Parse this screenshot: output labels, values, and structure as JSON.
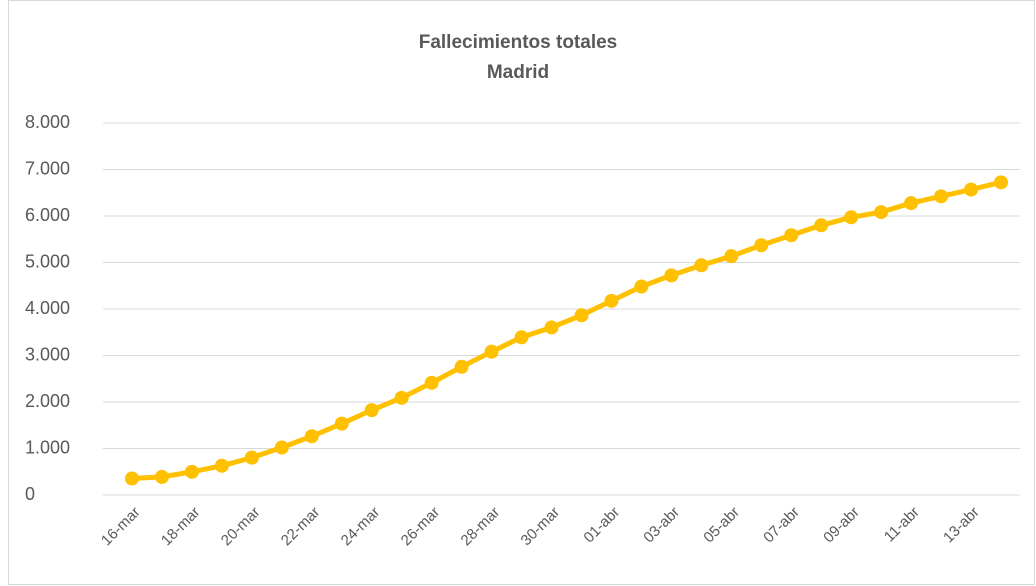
{
  "chart_data": {
    "type": "line",
    "title": "Fallecimientos totales",
    "subtitle": "Madrid",
    "categories": [
      "16-mar",
      null,
      "18-mar",
      null,
      "20-mar",
      null,
      "22-mar",
      null,
      "24-mar",
      null,
      "26-mar",
      null,
      "28-mar",
      null,
      "30-mar",
      null,
      "01-abr",
      null,
      "03-abr",
      null,
      "05-abr",
      null,
      "07-abr",
      null,
      "09-abr",
      null,
      "11-abr",
      null,
      "13-abr",
      null
    ],
    "series": [
      {
        "name": "Madrid",
        "color": "#ffc000",
        "values": [
          355,
          390,
          498,
          628,
          804,
          1021,
          1263,
          1535,
          1825,
          2090,
          2412,
          2757,
          3082,
          3392,
          3603,
          3865,
          4175,
          4483,
          4723,
          4941,
          5136,
          5371,
          5586,
          5800,
          5972,
          6084,
          6278,
          6423,
          6568,
          6724
        ]
      }
    ],
    "ylim": [
      0,
      8000
    ],
    "yticks": [
      0,
      {
        "value": 1000,
        "label": "1.000"
      },
      {
        "value": 2000,
        "label": "2.000"
      },
      {
        "value": 3000,
        "label": "3.000"
      },
      {
        "value": 4000,
        "label": "4.000"
      },
      {
        "value": 5000,
        "label": "5.000"
      },
      {
        "value": 6000,
        "label": "6.000"
      },
      {
        "value": 7000,
        "label": "7.000"
      },
      {
        "value": 8000,
        "label": "8.000"
      }
    ],
    "grid": true
  }
}
